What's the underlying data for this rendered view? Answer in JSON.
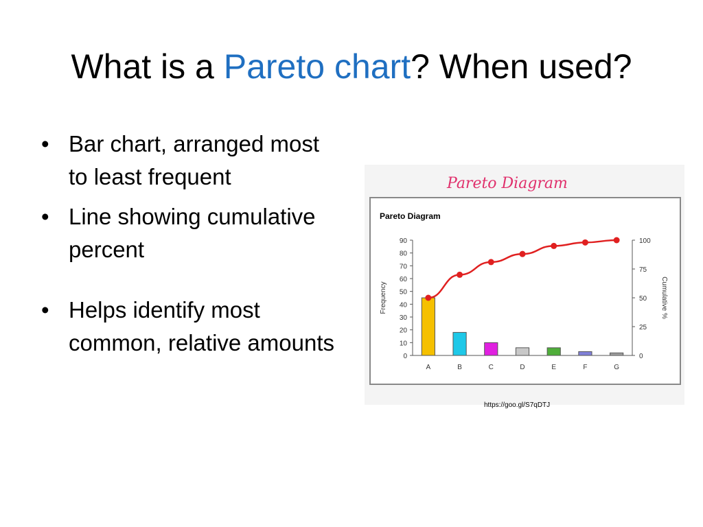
{
  "slide": {
    "title_part1": "What is a ",
    "title_accent": "Pareto chart",
    "title_part2": "?  When used?",
    "accent_color": "#1f6fc1",
    "bullets": [
      "Bar chart, arranged most to least frequent",
      "Line showing cumulative percent",
      "Helps identify most common, relative amounts"
    ],
    "bullet_glyph": "•",
    "source_url": "https://goo.gl/S7qDTJ"
  },
  "chart_data": {
    "type": "bar",
    "banner_title": "Pareto Diagram",
    "title": "Pareto Diagram",
    "xlabel": "",
    "ylabel": "Frequency",
    "y2label": "Cumulative %",
    "categories": [
      "A",
      "B",
      "C",
      "D",
      "E",
      "F",
      "G"
    ],
    "ylim": [
      0,
      90
    ],
    "yticks": [
      0,
      10,
      20,
      30,
      40,
      50,
      60,
      70,
      80,
      90
    ],
    "y2lim": [
      0,
      100
    ],
    "y2ticks": [
      0,
      25,
      50,
      75,
      100
    ],
    "series": [
      {
        "kind": "bar",
        "values": [
          45,
          18,
          10,
          6,
          6,
          3,
          2
        ],
        "colors": [
          "#f5c000",
          "#1ec8e8",
          "#e020e0",
          "#c8c8c8",
          "#4fae3a",
          "#8080d8",
          "#a0a0a0"
        ]
      },
      {
        "kind": "line",
        "axis": "right",
        "color": "#e02020",
        "values": [
          50,
          70,
          81,
          88,
          95,
          98,
          100
        ]
      }
    ],
    "banner_color": "#e0306c"
  }
}
